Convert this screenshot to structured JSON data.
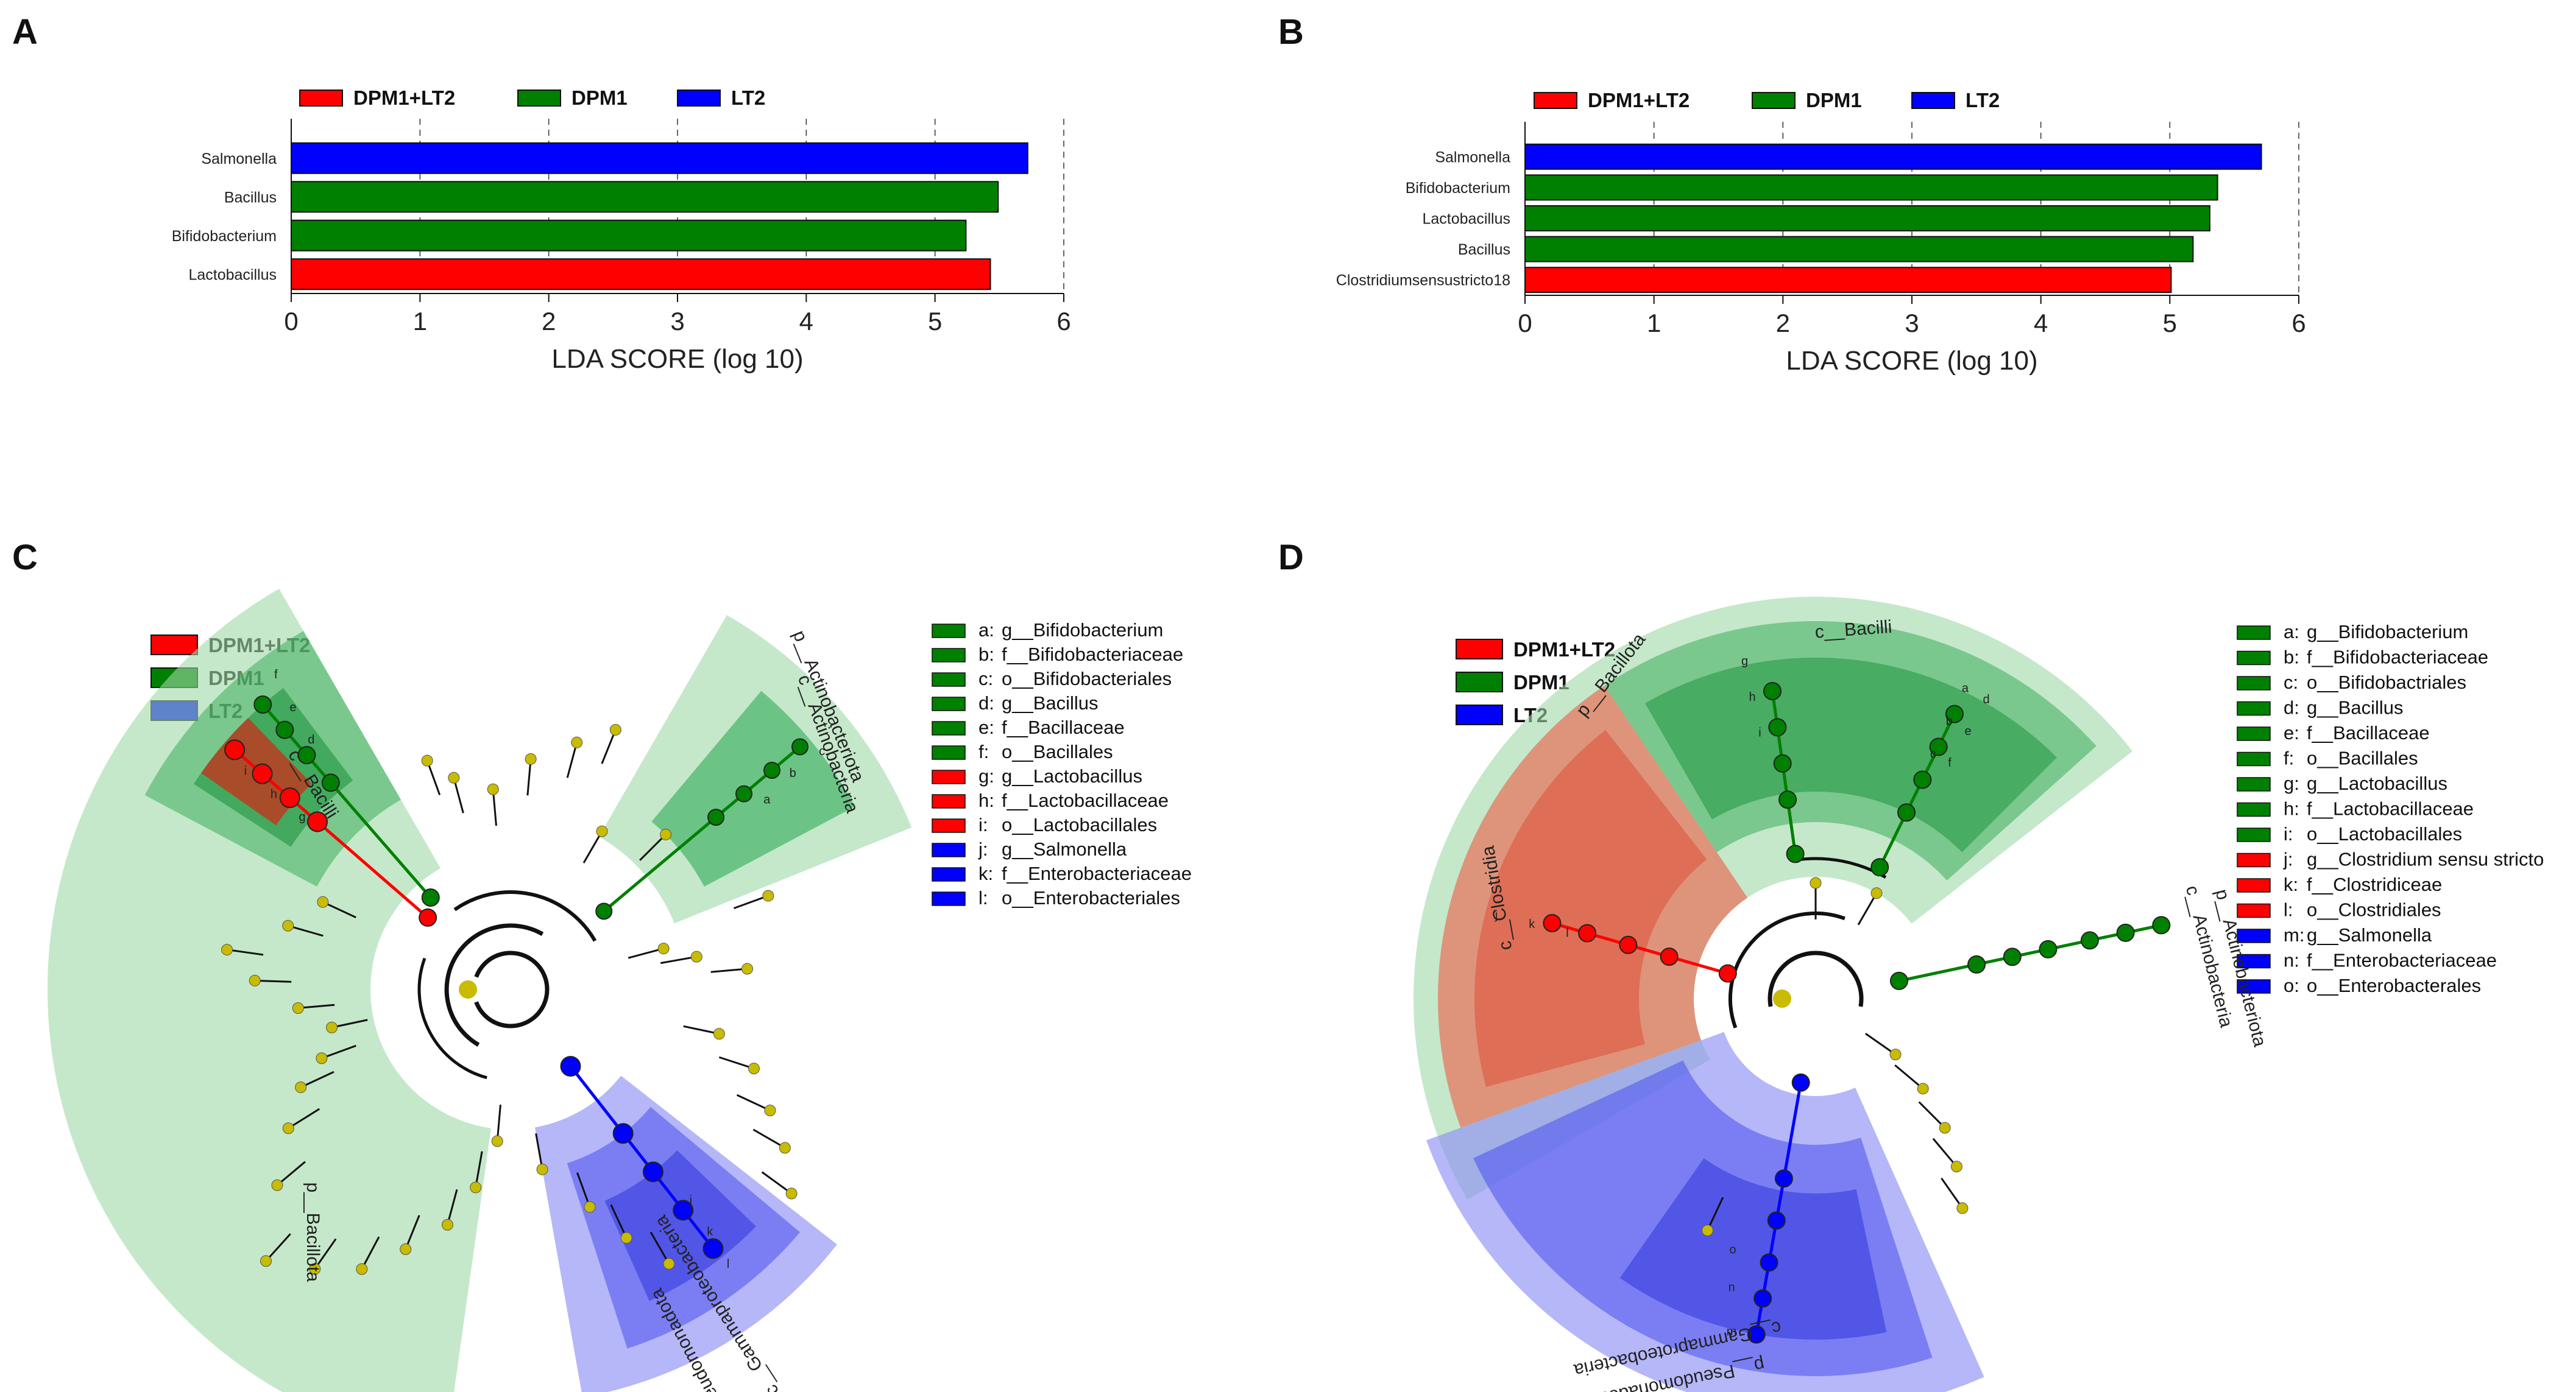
{
  "colors": {
    "DPM1+LT2": "#ff0000",
    "DPM1": "#008000",
    "LT2": "#0000ff",
    "background_node": "#c8bb00",
    "green_fill": "#9fd9a6",
    "blue_fill": "#8d90f5",
    "red_fill": "#e8705a"
  },
  "chart_data": [
    {
      "panel": "A",
      "type": "bar",
      "orientation": "horizontal",
      "legend": [
        "DPM1+LT2",
        "DPM1",
        "LT2"
      ],
      "categories": [
        "Salmonella",
        "Bacillus",
        "Bifidobacterium",
        "Lactobacillus"
      ],
      "values": [
        5.72,
        5.49,
        5.24,
        5.43
      ],
      "groups": [
        "LT2",
        "DPM1",
        "DPM1",
        "DPM1+LT2"
      ],
      "xlabel": "LDA SCORE (log 10)",
      "xlim": [
        0,
        6
      ],
      "xticks": [
        "0",
        "1",
        "2",
        "3",
        "4",
        "5",
        "6"
      ],
      "grid": true
    },
    {
      "panel": "B",
      "type": "bar",
      "orientation": "horizontal",
      "legend": [
        "DPM1+LT2",
        "DPM1",
        "LT2"
      ],
      "categories": [
        "Salmonella",
        "Bifidobacterium",
        "Lactobacillus",
        "Bacillus",
        "Clostridiumsensustricto18"
      ],
      "values": [
        5.71,
        5.37,
        5.31,
        5.18,
        5.01
      ],
      "groups": [
        "LT2",
        "DPM1",
        "DPM1",
        "DPM1",
        "DPM1+LT2"
      ],
      "xlabel": "LDA SCORE (log 10)",
      "xlim": [
        0,
        6
      ],
      "xticks": [
        "0",
        "1",
        "2",
        "3",
        "4",
        "5",
        "6"
      ],
      "grid": true
    },
    {
      "panel": "C",
      "type": "cladogram",
      "legend": [
        "DPM1+LT2",
        "DPM1",
        "LT2"
      ],
      "clade_labels": [
        "p__Bacillota",
        "c__Bacilli",
        "p__Actinobacteriota",
        "c__Actinobacteria",
        "p__Pseudomonadota",
        "c__Gammaproteobacteria"
      ],
      "key": [
        {
          "code": "a:",
          "name": "g__Bifidobacterium",
          "group": "DPM1"
        },
        {
          "code": "b:",
          "name": "f__Bifidobacteriaceae",
          "group": "DPM1"
        },
        {
          "code": "c:",
          "name": "o__Bifidobacteriales",
          "group": "DPM1"
        },
        {
          "code": "d:",
          "name": "g__Bacillus",
          "group": "DPM1"
        },
        {
          "code": "e:",
          "name": "f__Bacillaceae",
          "group": "DPM1"
        },
        {
          "code": "f:",
          "name": "o__Bacillales",
          "group": "DPM1"
        },
        {
          "code": "g:",
          "name": "g__Lactobacillus",
          "group": "DPM1+LT2"
        },
        {
          "code": "h:",
          "name": "f__Lactobacillaceae",
          "group": "DPM1+LT2"
        },
        {
          "code": "i:",
          "name": "o__Lactobacillales",
          "group": "DPM1+LT2"
        },
        {
          "code": "j:",
          "name": "g__Salmonella",
          "group": "LT2"
        },
        {
          "code": "k:",
          "name": "f__Enterobacteriaceae",
          "group": "LT2"
        },
        {
          "code": "l:",
          "name": "o__Enterobacteriales",
          "group": "LT2"
        }
      ],
      "node_letters": [
        "a",
        "b",
        "c",
        "d",
        "e",
        "f",
        "g",
        "h",
        "i",
        "j",
        "k",
        "l"
      ]
    },
    {
      "panel": "D",
      "type": "cladogram",
      "legend": [
        "DPM1+LT2",
        "DPM1",
        "LT2"
      ],
      "clade_labels": [
        "p__Bacillota",
        "c__Bacilli",
        "c__Clostridia",
        "p__Actinobacteriota",
        "c__Actinobacteria",
        "p__Pseudomonadota",
        "c__Gammaproteobacteria"
      ],
      "key": [
        {
          "code": "a:",
          "name": "g__Bifidobacterium",
          "group": "DPM1"
        },
        {
          "code": "b:",
          "name": "f__Bifidobacteriaceae",
          "group": "DPM1"
        },
        {
          "code": "c:",
          "name": "o__Bifidobactriales",
          "group": "DPM1"
        },
        {
          "code": "d:",
          "name": "g__Bacillus",
          "group": "DPM1"
        },
        {
          "code": "e:",
          "name": "f__Bacillaceae",
          "group": "DPM1"
        },
        {
          "code": "f:",
          "name": "o__Bacillales",
          "group": "DPM1"
        },
        {
          "code": "g:",
          "name": "g__Lactobacillus",
          "group": "DPM1"
        },
        {
          "code": "h:",
          "name": "f__Lactobacillaceae",
          "group": "DPM1"
        },
        {
          "code": "i:",
          "name": "o__Lactobacillales",
          "group": "DPM1"
        },
        {
          "code": "j:",
          "name": "g__Clostridium sensu stricto",
          "group": "DPM1+LT2"
        },
        {
          "code": "k:",
          "name": "f__Clostridiceae",
          "group": "DPM1+LT2"
        },
        {
          "code": "l:",
          "name": "o__Clostridiales",
          "group": "DPM1+LT2"
        },
        {
          "code": "m:",
          "name": "g__Salmonella",
          "group": "LT2"
        },
        {
          "code": "n:",
          "name": "f__Enterobacteriaceae",
          "group": "LT2"
        },
        {
          "code": "o:",
          "name": "o__Enterobacterales",
          "group": "LT2"
        }
      ],
      "node_letters": [
        "a",
        "b",
        "c",
        "d",
        "e",
        "f",
        "g",
        "h",
        "i",
        "j",
        "k",
        "l",
        "m",
        "n",
        "o"
      ]
    }
  ]
}
